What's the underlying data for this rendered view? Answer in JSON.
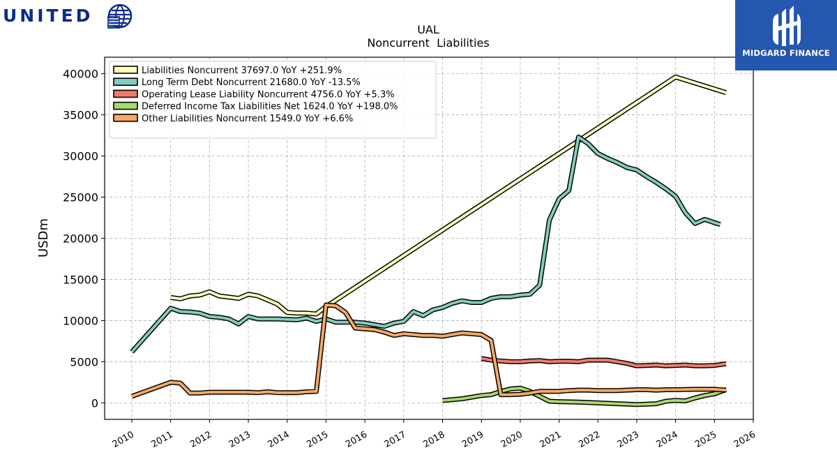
{
  "logos": {
    "brand_wordmark": "UNITED",
    "brand_mark_name": "globe-icon",
    "partner_name": "MIDGARD FINANCE",
    "partner_color": "#2556b0"
  },
  "chart_data": {
    "type": "line",
    "title": "UAL",
    "subtitle": "Noncurrent  Liabilities",
    "xlabel": "",
    "ylabel": "USDm",
    "xlim": [
      2009.3,
      2026.0
    ],
    "ylim": [
      -2000,
      42000
    ],
    "x_ticks": [
      2010,
      2011,
      2012,
      2013,
      2014,
      2015,
      2016,
      2017,
      2018,
      2019,
      2020,
      2021,
      2022,
      2023,
      2024,
      2025,
      2026
    ],
    "y_ticks": [
      0,
      5000,
      10000,
      15000,
      20000,
      25000,
      30000,
      35000,
      40000
    ],
    "grid": true,
    "legend_position": "top-left",
    "series": [
      {
        "name": "Liabilities Noncurrent",
        "legend_label": "Liabilities Noncurrent  37697.0 YoY +251.9%",
        "color": "#fefdbd",
        "points": [
          [
            2011.0,
            12800
          ],
          [
            2011.25,
            12650
          ],
          [
            2011.5,
            13000
          ],
          [
            2011.75,
            13100
          ],
          [
            2012.0,
            13500
          ],
          [
            2012.25,
            13000
          ],
          [
            2012.5,
            12850
          ],
          [
            2012.75,
            12700
          ],
          [
            2013.0,
            13200
          ],
          [
            2013.25,
            13000
          ],
          [
            2013.5,
            12500
          ],
          [
            2013.75,
            12000
          ],
          [
            2014.0,
            11000
          ],
          [
            2014.25,
            10900
          ],
          [
            2014.5,
            10900
          ],
          [
            2014.75,
            10800
          ],
          [
            2015.0,
            11700
          ],
          [
            2024.0,
            39600
          ],
          [
            2025.3,
            37697
          ]
        ]
      },
      {
        "name": "Long Term Debt Noncurrent",
        "legend_label": "Long Term Debt Noncurrent  21680.0 YoY -13.5%",
        "color": "#82cdbc",
        "points": [
          [
            2010.0,
            6200
          ],
          [
            2011.0,
            11500
          ],
          [
            2011.25,
            11100
          ],
          [
            2011.5,
            11050
          ],
          [
            2011.75,
            10900
          ],
          [
            2012.0,
            10500
          ],
          [
            2012.25,
            10400
          ],
          [
            2012.5,
            10200
          ],
          [
            2012.75,
            9600
          ],
          [
            2013.0,
            10500
          ],
          [
            2013.25,
            10200
          ],
          [
            2013.5,
            10200
          ],
          [
            2013.75,
            10200
          ],
          [
            2014.0,
            10150
          ],
          [
            2014.25,
            10100
          ],
          [
            2014.5,
            10300
          ],
          [
            2014.75,
            9900
          ],
          [
            2015.0,
            10200
          ],
          [
            2015.25,
            9800
          ],
          [
            2015.5,
            9800
          ],
          [
            2015.75,
            9800
          ],
          [
            2016.0,
            9700
          ],
          [
            2016.5,
            9300
          ],
          [
            2016.75,
            9700
          ],
          [
            2017.0,
            9900
          ],
          [
            2017.25,
            11100
          ],
          [
            2017.5,
            10600
          ],
          [
            2017.75,
            11300
          ],
          [
            2018.0,
            11600
          ],
          [
            2018.25,
            12100
          ],
          [
            2018.5,
            12400
          ],
          [
            2018.75,
            12200
          ],
          [
            2019.0,
            12200
          ],
          [
            2019.25,
            12700
          ],
          [
            2019.5,
            12900
          ],
          [
            2019.75,
            12900
          ],
          [
            2020.0,
            13100
          ],
          [
            2020.25,
            13200
          ],
          [
            2020.5,
            14300
          ],
          [
            2020.75,
            22200
          ],
          [
            2021.0,
            24800
          ],
          [
            2021.25,
            25800
          ],
          [
            2021.5,
            32300
          ],
          [
            2021.75,
            31500
          ],
          [
            2022.0,
            30300
          ],
          [
            2022.25,
            29700
          ],
          [
            2022.5,
            29200
          ],
          [
            2022.75,
            28600
          ],
          [
            2023.0,
            28300
          ],
          [
            2023.25,
            27500
          ],
          [
            2023.5,
            26800
          ],
          [
            2023.75,
            26000
          ],
          [
            2024.0,
            25100
          ],
          [
            2024.25,
            23100
          ],
          [
            2024.5,
            21800
          ],
          [
            2024.75,
            22300
          ],
          [
            2025.0,
            21900
          ],
          [
            2025.15,
            21680
          ]
        ]
      },
      {
        "name": "Operating Lease Liability Noncurrent",
        "legend_label": "Operating Lease Liability Noncurrent  4756.0 YoY +5.3%",
        "color": "#f27a6c",
        "points": [
          [
            2019.0,
            5400
          ],
          [
            2019.25,
            5200
          ],
          [
            2019.5,
            5100
          ],
          [
            2019.75,
            5000
          ],
          [
            2020.0,
            5000
          ],
          [
            2020.25,
            5100
          ],
          [
            2020.5,
            5150
          ],
          [
            2020.75,
            5000
          ],
          [
            2021.0,
            5050
          ],
          [
            2021.25,
            5050
          ],
          [
            2021.5,
            5000
          ],
          [
            2021.75,
            5200
          ],
          [
            2022.0,
            5200
          ],
          [
            2022.25,
            5200
          ],
          [
            2022.5,
            5000
          ],
          [
            2022.75,
            4800
          ],
          [
            2023.0,
            4500
          ],
          [
            2023.25,
            4550
          ],
          [
            2023.5,
            4600
          ],
          [
            2023.75,
            4500
          ],
          [
            2024.0,
            4550
          ],
          [
            2024.25,
            4600
          ],
          [
            2024.5,
            4500
          ],
          [
            2024.75,
            4500
          ],
          [
            2025.0,
            4550
          ],
          [
            2025.3,
            4756
          ]
        ]
      },
      {
        "name": "Deferred Income Tax Liabilities Net",
        "legend_label": "Deferred Income Tax Liabilities Net  1624.0 YoY +198.0%",
        "color": "#a8d870",
        "points": [
          [
            2018.0,
            300
          ],
          [
            2018.5,
            500
          ],
          [
            2018.75,
            700
          ],
          [
            2019.0,
            900
          ],
          [
            2019.25,
            1000
          ],
          [
            2019.5,
            1400
          ],
          [
            2019.75,
            1700
          ],
          [
            2020.0,
            1800
          ],
          [
            2020.25,
            1400
          ],
          [
            2020.5,
            800
          ],
          [
            2020.75,
            200
          ],
          [
            2021.0,
            150
          ],
          [
            2021.5,
            100
          ],
          [
            2022.0,
            0
          ],
          [
            2022.5,
            -100
          ],
          [
            2023.0,
            -200
          ],
          [
            2023.5,
            -100
          ],
          [
            2023.75,
            200
          ],
          [
            2024.0,
            300
          ],
          [
            2024.25,
            250
          ],
          [
            2024.5,
            600
          ],
          [
            2024.75,
            900
          ],
          [
            2025.0,
            1100
          ],
          [
            2025.3,
            1624
          ]
        ]
      },
      {
        "name": "Other Liabilities Noncurrent",
        "legend_label": "Other Liabilities Noncurrent  1549.0 YoY +6.6%",
        "color": "#f6a865",
        "points": [
          [
            2010.0,
            800
          ],
          [
            2011.0,
            2500
          ],
          [
            2011.25,
            2400
          ],
          [
            2011.5,
            1200
          ],
          [
            2011.75,
            1200
          ],
          [
            2012.0,
            1300
          ],
          [
            2012.5,
            1300
          ],
          [
            2013.0,
            1300
          ],
          [
            2013.25,
            1250
          ],
          [
            2013.5,
            1350
          ],
          [
            2013.75,
            1250
          ],
          [
            2014.0,
            1250
          ],
          [
            2014.25,
            1250
          ],
          [
            2014.5,
            1350
          ],
          [
            2014.75,
            1400
          ],
          [
            2015.0,
            11900
          ],
          [
            2015.25,
            11800
          ],
          [
            2015.5,
            11000
          ],
          [
            2015.75,
            9100
          ],
          [
            2016.0,
            9000
          ],
          [
            2016.25,
            8900
          ],
          [
            2016.5,
            8600
          ],
          [
            2016.75,
            8200
          ],
          [
            2017.0,
            8400
          ],
          [
            2017.25,
            8300
          ],
          [
            2017.5,
            8200
          ],
          [
            2017.75,
            8200
          ],
          [
            2018.0,
            8100
          ],
          [
            2018.5,
            8500
          ],
          [
            2018.75,
            8400
          ],
          [
            2019.0,
            8300
          ],
          [
            2019.25,
            7600
          ],
          [
            2019.5,
            1000
          ],
          [
            2019.75,
            1000
          ],
          [
            2020.0,
            1050
          ],
          [
            2020.25,
            1200
          ],
          [
            2020.5,
            1400
          ],
          [
            2020.75,
            1400
          ],
          [
            2021.0,
            1400
          ],
          [
            2021.25,
            1500
          ],
          [
            2021.5,
            1550
          ],
          [
            2021.75,
            1550
          ],
          [
            2022.0,
            1500
          ],
          [
            2022.5,
            1500
          ],
          [
            2022.75,
            1550
          ],
          [
            2023.0,
            1600
          ],
          [
            2023.25,
            1600
          ],
          [
            2023.5,
            1550
          ],
          [
            2023.75,
            1600
          ],
          [
            2024.0,
            1600
          ],
          [
            2024.5,
            1650
          ],
          [
            2025.0,
            1650
          ],
          [
            2025.3,
            1549
          ]
        ]
      }
    ]
  }
}
